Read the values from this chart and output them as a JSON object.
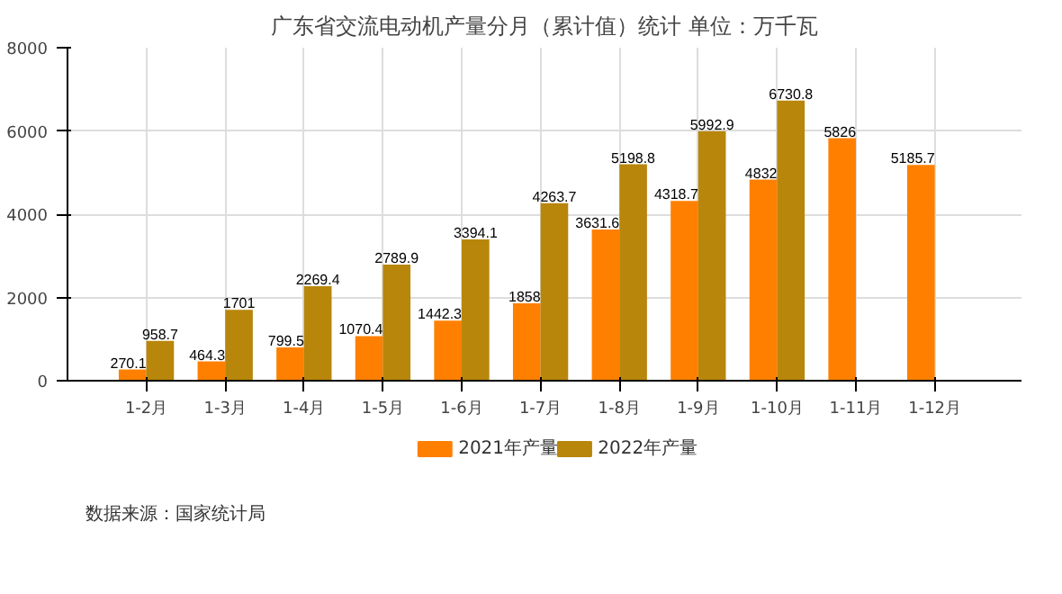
{
  "chart_data": {
    "type": "bar",
    "title": "广东省交流电动机产量分月（累计值）统计 单位：万千瓦",
    "categories": [
      "1-2月",
      "1-3月",
      "1-4月",
      "1-5月",
      "1-6月",
      "1-7月",
      "1-8月",
      "1-9月",
      "1-10月",
      "1-11月",
      "1-12月"
    ],
    "series": [
      {
        "name": "2021年产量",
        "color": "#ff8000",
        "values": [
          270.1,
          464.3,
          799.5,
          1070.4,
          1442.3,
          1858,
          3631.6,
          4318.7,
          4832,
          5826,
          5185.7
        ]
      },
      {
        "name": "2022年产量",
        "color": "#b8860b",
        "values": [
          958.7,
          1701,
          2269.4,
          2789.9,
          3394.1,
          4263.7,
          5198.8,
          5992.9,
          6730.8,
          null,
          null
        ]
      }
    ],
    "ylim": [
      0,
      8000
    ],
    "yticks": [
      0,
      2000,
      4000,
      6000,
      8000
    ],
    "grid": true,
    "legend": "bottom",
    "data_labels": true,
    "annotations": [
      "数据来源：国家统计局"
    ]
  }
}
